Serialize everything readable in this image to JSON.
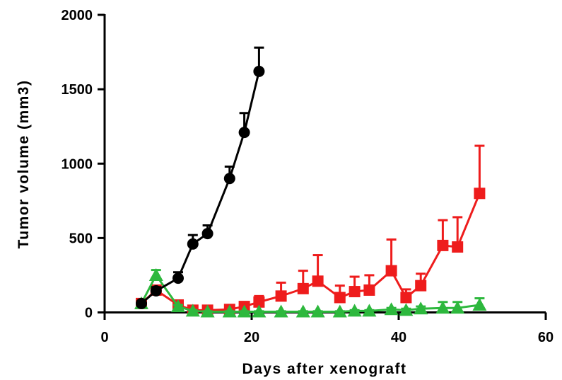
{
  "chart_data": {
    "type": "line",
    "title": "",
    "xlabel": "Days after xenograft",
    "ylabel": "Tumor volume (mm3)",
    "xlim": [
      0,
      60
    ],
    "ylim": [
      0,
      2000
    ],
    "xticks": [
      0,
      20,
      40,
      60
    ],
    "yticks": [
      0,
      500,
      1000,
      1500,
      2000
    ],
    "grid": false,
    "series": [
      {
        "color": "#ee1c1c",
        "marker": "square",
        "x": [
          5,
          7,
          10,
          12,
          14,
          17,
          19,
          21,
          24,
          27,
          29,
          32,
          34,
          36,
          39,
          41,
          43,
          46,
          48,
          51
        ],
        "values": [
          60,
          150,
          50,
          15,
          15,
          20,
          40,
          70,
          110,
          160,
          210,
          100,
          140,
          150,
          280,
          100,
          180,
          450,
          440,
          800
        ],
        "error": [
          15,
          25,
          15,
          10,
          10,
          10,
          20,
          40,
          90,
          120,
          175,
          80,
          100,
          100,
          210,
          55,
          80,
          170,
          200,
          320
        ]
      },
      {
        "color": "#2db83d",
        "marker": "triangle",
        "x": [
          5,
          7,
          10,
          12,
          14,
          17,
          19,
          21,
          24,
          27,
          29,
          32,
          34,
          36,
          39,
          41,
          43,
          46,
          48,
          51
        ],
        "values": [
          60,
          250,
          40,
          10,
          5,
          5,
          5,
          5,
          5,
          5,
          5,
          5,
          10,
          10,
          20,
          15,
          25,
          30,
          30,
          50
        ],
        "error": [
          15,
          35,
          10,
          5,
          3,
          3,
          3,
          3,
          3,
          3,
          3,
          3,
          5,
          5,
          10,
          10,
          15,
          40,
          40,
          45
        ]
      },
      {
        "color": "#000000",
        "marker": "circle",
        "x": [
          5,
          7,
          10,
          12,
          14,
          17,
          19,
          21
        ],
        "values": [
          60,
          145,
          230,
          460,
          530,
          900,
          1210,
          1620
        ],
        "error": [
          15,
          25,
          40,
          60,
          55,
          80,
          130,
          160
        ]
      }
    ]
  }
}
